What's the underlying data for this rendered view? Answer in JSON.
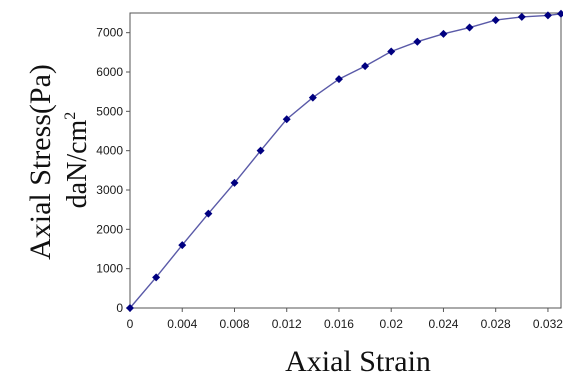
{
  "chart_data": {
    "type": "line",
    "xlabel": "Axial Strain",
    "ylabel_line1": "Axial Stress(Pa)",
    "ylabel_line2": "daN/cm",
    "ylabel_line2_superscript": "2",
    "xlim": [
      0,
      0.033
    ],
    "ylim": [
      0,
      7500
    ],
    "x_ticks": [
      "0",
      "0.004",
      "0.008",
      "0.012",
      "0.016",
      "0.02",
      "0.024",
      "0.028",
      "0.032"
    ],
    "y_ticks": [
      "0",
      "1000",
      "2000",
      "3000",
      "4000",
      "5000",
      "6000",
      "7000"
    ],
    "grid": false,
    "legend": "none",
    "series": [
      {
        "color": "#000080",
        "marker": "diamond",
        "x": [
          0,
          0.002,
          0.004,
          0.006,
          0.008,
          0.01,
          0.012,
          0.014,
          0.016,
          0.018,
          0.02,
          0.022,
          0.024,
          0.026,
          0.028,
          0.03,
          0.032,
          0.033
        ],
        "y": [
          0,
          780,
          1600,
          2400,
          3180,
          4000,
          4800,
          5350,
          5820,
          6150,
          6520,
          6770,
          6970,
          7130,
          7320,
          7400,
          7440,
          7480
        ]
      }
    ]
  }
}
